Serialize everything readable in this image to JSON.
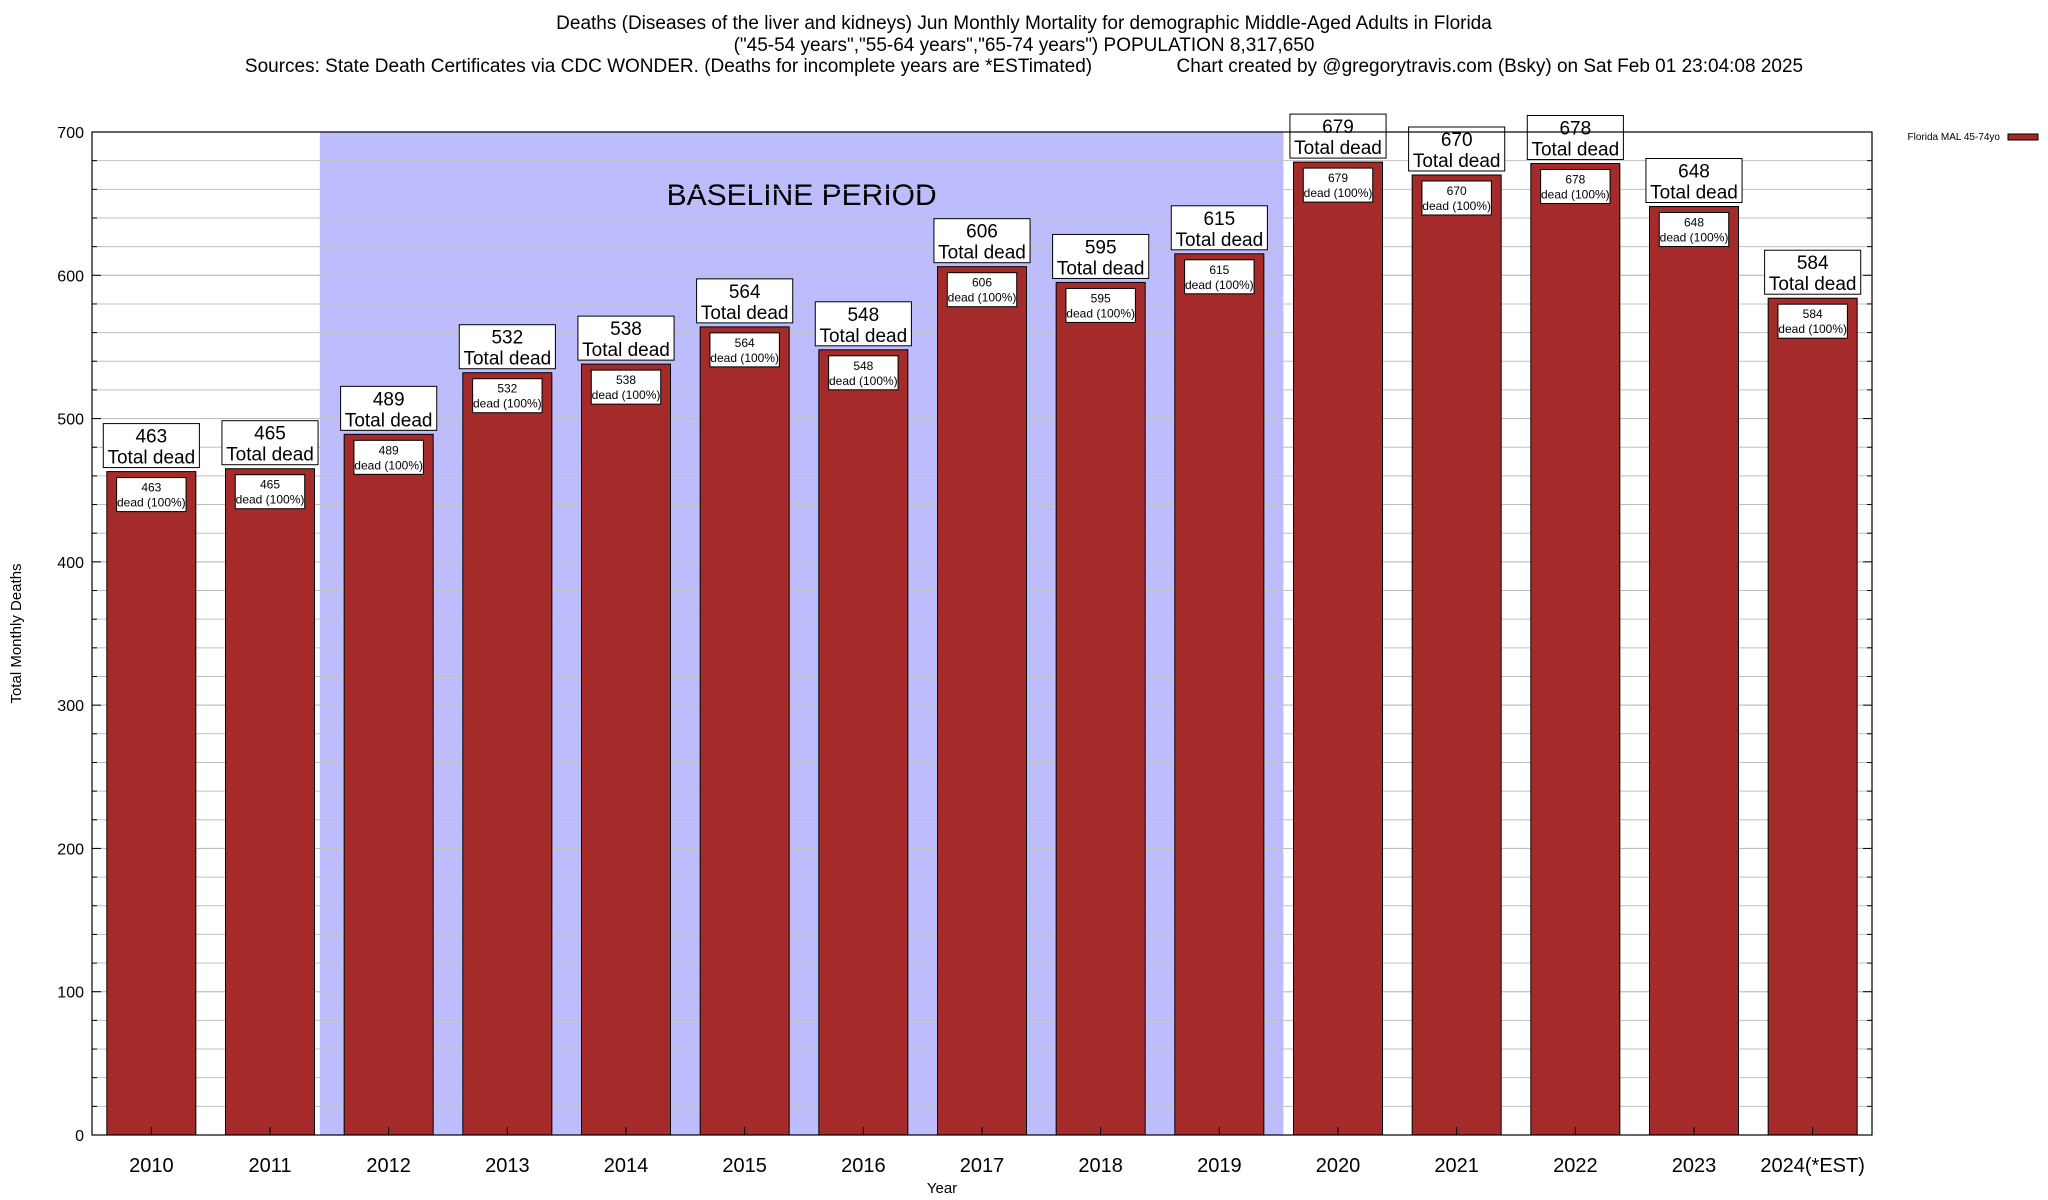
{
  "header": {
    "line1": "Deaths (Diseases of the liver and kidneys) Jun Monthly Mortality for demographic Middle-Aged Adults in Florida",
    "line2": "(\"45-54 years\",\"55-64 years\",\"65-74 years\") POPULATION 8,317,650",
    "line3": "Sources: State Death Certificates via CDC WONDER. (Deaths for incomplete years are *ESTimated)                Chart created by @gregorytravis.com (Bsky) on Sat Feb 01 23:04:08 2025"
  },
  "chart_data": {
    "type": "bar",
    "categories": [
      "2010",
      "2011",
      "2012",
      "2013",
      "2014",
      "2015",
      "2016",
      "2017",
      "2018",
      "2019",
      "2020",
      "2021",
      "2022",
      "2023",
      "2024(*EST)"
    ],
    "series": [
      {
        "name": "Florida MAL 45-74yo",
        "values": [
          463,
          465,
          489,
          532,
          538,
          564,
          548,
          606,
          595,
          615,
          679,
          670,
          678,
          648,
          584
        ],
        "color": "#a52a2a"
      }
    ],
    "bar_top_labels": [
      "463\nTotal dead",
      "465\nTotal dead",
      "489\nTotal dead",
      "532\nTotal dead",
      "538\nTotal dead",
      "564\nTotal dead",
      "548\nTotal dead",
      "606\nTotal dead",
      "595\nTotal dead",
      "615\nTotal dead",
      "679\nTotal dead",
      "670\nTotal dead",
      "678\nTotal dead",
      "648\nTotal dead",
      "584\nTotal dead"
    ],
    "bar_inner_labels": [
      "463\ndead (100%)",
      "465\ndead (100%)",
      "489\ndead (100%)",
      "532\ndead (100%)",
      "538\ndead (100%)",
      "564\ndead (100%)",
      "548\ndead (100%)",
      "606\ndead (100%)",
      "595\ndead (100%)",
      "615\ndead (100%)",
      "679\ndead (100%)",
      "670\ndead (100%)",
      "678\ndead (100%)",
      "648\ndead (100%)",
      "584\ndead (100%)"
    ],
    "xlabel": "Year",
    "ylabel": "Total Monthly Deaths",
    "ylim": [
      0,
      700
    ],
    "yticks": [
      0,
      100,
      200,
      300,
      400,
      500,
      600,
      700
    ],
    "ytick_labels": [
      "0",
      "100",
      "200",
      "300",
      "400",
      "500",
      "600",
      "700"
    ],
    "baseline_band": {
      "label": "BASELINE PERIOD",
      "from": "2012",
      "to": "2019",
      "color": "#bdbdfd"
    },
    "grid": true,
    "legend": "top-right",
    "colors": {
      "bar": "#a52a2a",
      "band": "#bdbdfd",
      "grid": "#c0c0c0"
    }
  }
}
